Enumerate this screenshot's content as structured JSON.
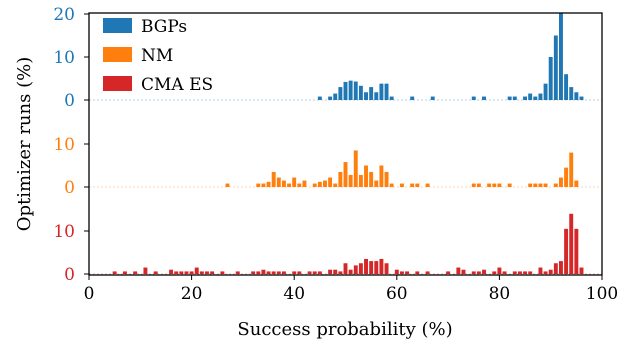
{
  "chart_data": {
    "type": "bar",
    "xlabel": "Success probability (%)",
    "ylabel": "Optimizer runs (%)",
    "xlim": [
      0,
      100
    ],
    "x_ticks": [
      0,
      20,
      40,
      60,
      80,
      100
    ],
    "bin_width": 1,
    "grid": false,
    "legend_position": "top-left",
    "series": [
      {
        "name": "BGPs",
        "color": "#1f77b4",
        "offset_label": "0",
        "y_ticks": [
          "20",
          "10",
          "0"
        ],
        "y_tick_values": [
          20,
          10,
          0
        ],
        "ylim": [
          0,
          20
        ],
        "points": [
          {
            "x": 45,
            "y": 0.8
          },
          {
            "x": 47,
            "y": 0.8
          },
          {
            "x": 48,
            "y": 1.5
          },
          {
            "x": 49,
            "y": 3.0
          },
          {
            "x": 50,
            "y": 4.2
          },
          {
            "x": 51,
            "y": 4.5
          },
          {
            "x": 52,
            "y": 4.3
          },
          {
            "x": 53,
            "y": 3.3
          },
          {
            "x": 54,
            "y": 1.8
          },
          {
            "x": 55,
            "y": 3.0
          },
          {
            "x": 56,
            "y": 1.8
          },
          {
            "x": 57,
            "y": 3.8
          },
          {
            "x": 58,
            "y": 3.8
          },
          {
            "x": 59,
            "y": 0.8
          },
          {
            "x": 63,
            "y": 0.8
          },
          {
            "x": 67,
            "y": 0.8
          },
          {
            "x": 75,
            "y": 0.8
          },
          {
            "x": 77,
            "y": 0.8
          },
          {
            "x": 82,
            "y": 0.8
          },
          {
            "x": 83,
            "y": 0.8
          },
          {
            "x": 85,
            "y": 0.8
          },
          {
            "x": 86,
            "y": 1.5
          },
          {
            "x": 87,
            "y": 0.8
          },
          {
            "x": 88,
            "y": 1.5
          },
          {
            "x": 89,
            "y": 3.8
          },
          {
            "x": 90,
            "y": 10.0
          },
          {
            "x": 91,
            "y": 15.0
          },
          {
            "x": 92,
            "y": 20.5
          },
          {
            "x": 93,
            "y": 6.0
          },
          {
            "x": 94,
            "y": 3.0
          },
          {
            "x": 95,
            "y": 1.8
          },
          {
            "x": 96,
            "y": 0.8
          }
        ]
      },
      {
        "name": "NM",
        "color": "#ff7f0e",
        "offset_label": "0",
        "y_ticks": [
          "10",
          "0"
        ],
        "y_tick_values": [
          10,
          0
        ],
        "ylim": [
          0,
          20
        ],
        "points": [
          {
            "x": 27,
            "y": 0.8
          },
          {
            "x": 33,
            "y": 0.8
          },
          {
            "x": 34,
            "y": 0.8
          },
          {
            "x": 35,
            "y": 1.2
          },
          {
            "x": 36,
            "y": 3.5
          },
          {
            "x": 37,
            "y": 2.2
          },
          {
            "x": 38,
            "y": 1.5
          },
          {
            "x": 39,
            "y": 0.8
          },
          {
            "x": 40,
            "y": 2.2
          },
          {
            "x": 41,
            "y": 0.8
          },
          {
            "x": 42,
            "y": 1.5
          },
          {
            "x": 44,
            "y": 0.8
          },
          {
            "x": 45,
            "y": 1.2
          },
          {
            "x": 46,
            "y": 1.5
          },
          {
            "x": 47,
            "y": 2.2
          },
          {
            "x": 48,
            "y": 0.8
          },
          {
            "x": 49,
            "y": 3.5
          },
          {
            "x": 50,
            "y": 5.8
          },
          {
            "x": 51,
            "y": 2.8
          },
          {
            "x": 52,
            "y": 8.5
          },
          {
            "x": 53,
            "y": 2.8
          },
          {
            "x": 54,
            "y": 5.0
          },
          {
            "x": 55,
            "y": 3.5
          },
          {
            "x": 56,
            "y": 1.5
          },
          {
            "x": 57,
            "y": 5.0
          },
          {
            "x": 58,
            "y": 3.5
          },
          {
            "x": 59,
            "y": 0.8
          },
          {
            "x": 61,
            "y": 0.8
          },
          {
            "x": 63,
            "y": 0.8
          },
          {
            "x": 64,
            "y": 0.8
          },
          {
            "x": 66,
            "y": 0.8
          },
          {
            "x": 75,
            "y": 0.8
          },
          {
            "x": 76,
            "y": 0.8
          },
          {
            "x": 78,
            "y": 0.8
          },
          {
            "x": 79,
            "y": 0.8
          },
          {
            "x": 80,
            "y": 0.8
          },
          {
            "x": 82,
            "y": 0.8
          },
          {
            "x": 86,
            "y": 0.8
          },
          {
            "x": 87,
            "y": 0.8
          },
          {
            "x": 88,
            "y": 0.8
          },
          {
            "x": 89,
            "y": 0.8
          },
          {
            "x": 91,
            "y": 0.8
          },
          {
            "x": 92,
            "y": 2.2
          },
          {
            "x": 93,
            "y": 4.5
          },
          {
            "x": 94,
            "y": 8.0
          },
          {
            "x": 95,
            "y": 1.5
          }
        ]
      },
      {
        "name": "CMA ES",
        "color": "#d62728",
        "offset_label": "0",
        "y_ticks": [
          "10",
          "0"
        ],
        "y_tick_values": [
          10,
          0
        ],
        "ylim": [
          0,
          20
        ],
        "points": [
          {
            "x": 5,
            "y": 0.6
          },
          {
            "x": 7,
            "y": 0.6
          },
          {
            "x": 9,
            "y": 0.6
          },
          {
            "x": 11,
            "y": 1.5
          },
          {
            "x": 13,
            "y": 0.6
          },
          {
            "x": 16,
            "y": 1.0
          },
          {
            "x": 17,
            "y": 0.6
          },
          {
            "x": 18,
            "y": 0.6
          },
          {
            "x": 19,
            "y": 0.6
          },
          {
            "x": 20,
            "y": 0.6
          },
          {
            "x": 21,
            "y": 1.5
          },
          {
            "x": 22,
            "y": 0.6
          },
          {
            "x": 23,
            "y": 0.6
          },
          {
            "x": 24,
            "y": 0.6
          },
          {
            "x": 26,
            "y": 0.6
          },
          {
            "x": 29,
            "y": 0.6
          },
          {
            "x": 32,
            "y": 0.6
          },
          {
            "x": 33,
            "y": 0.6
          },
          {
            "x": 34,
            "y": 1.0
          },
          {
            "x": 35,
            "y": 0.6
          },
          {
            "x": 36,
            "y": 0.6
          },
          {
            "x": 37,
            "y": 0.6
          },
          {
            "x": 38,
            "y": 0.6
          },
          {
            "x": 40,
            "y": 0.6
          },
          {
            "x": 41,
            "y": 0.6
          },
          {
            "x": 43,
            "y": 0.6
          },
          {
            "x": 44,
            "y": 0.6
          },
          {
            "x": 45,
            "y": 0.6
          },
          {
            "x": 47,
            "y": 1.0
          },
          {
            "x": 48,
            "y": 1.0
          },
          {
            "x": 49,
            "y": 0.6
          },
          {
            "x": 50,
            "y": 2.5
          },
          {
            "x": 51,
            "y": 1.0
          },
          {
            "x": 52,
            "y": 2.0
          },
          {
            "x": 53,
            "y": 2.5
          },
          {
            "x": 54,
            "y": 3.5
          },
          {
            "x": 55,
            "y": 3.0
          },
          {
            "x": 56,
            "y": 3.0
          },
          {
            "x": 57,
            "y": 3.5
          },
          {
            "x": 58,
            "y": 2.5
          },
          {
            "x": 60,
            "y": 1.0
          },
          {
            "x": 61,
            "y": 0.6
          },
          {
            "x": 62,
            "y": 0.6
          },
          {
            "x": 64,
            "y": 0.6
          },
          {
            "x": 66,
            "y": 0.6
          },
          {
            "x": 70,
            "y": 0.6
          },
          {
            "x": 72,
            "y": 1.5
          },
          {
            "x": 73,
            "y": 1.0
          },
          {
            "x": 75,
            "y": 0.6
          },
          {
            "x": 76,
            "y": 0.6
          },
          {
            "x": 77,
            "y": 1.0
          },
          {
            "x": 79,
            "y": 0.6
          },
          {
            "x": 80,
            "y": 1.5
          },
          {
            "x": 81,
            "y": 0.6
          },
          {
            "x": 83,
            "y": 0.6
          },
          {
            "x": 84,
            "y": 0.6
          },
          {
            "x": 85,
            "y": 0.6
          },
          {
            "x": 86,
            "y": 0.6
          },
          {
            "x": 88,
            "y": 1.5
          },
          {
            "x": 89,
            "y": 0.6
          },
          {
            "x": 90,
            "y": 1.0
          },
          {
            "x": 91,
            "y": 2.5
          },
          {
            "x": 92,
            "y": 3.0
          },
          {
            "x": 93,
            "y": 10.5
          },
          {
            "x": 94,
            "y": 14.0
          },
          {
            "x": 95,
            "y": 10.5
          },
          {
            "x": 96,
            "y": 1.5
          }
        ]
      }
    ]
  }
}
